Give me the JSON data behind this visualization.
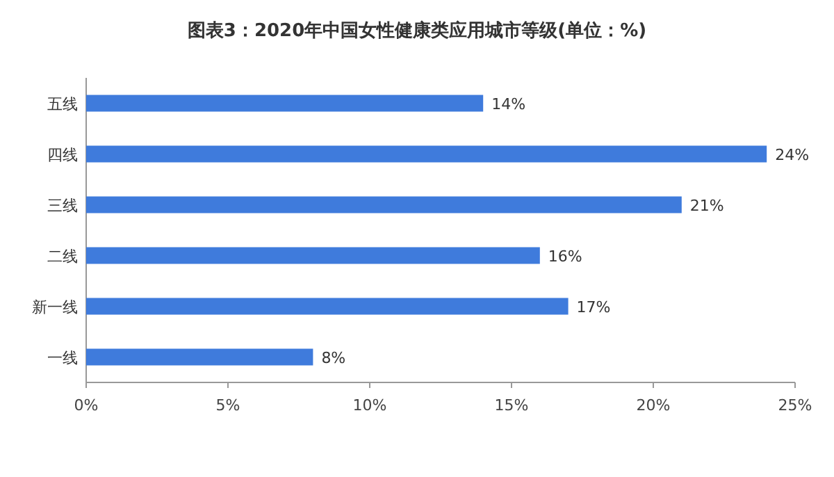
{
  "chart_data": {
    "type": "bar",
    "orientation": "horizontal",
    "title": "图表3：2020年中国女性健康类应用城市等级(单位：%)",
    "categories": [
      "五线",
      "四线",
      "三线",
      "二线",
      "新一线",
      "一线"
    ],
    "values": [
      14,
      24,
      21,
      16,
      17,
      8
    ],
    "value_labels": [
      "14%",
      "24%",
      "21%",
      "16%",
      "17%",
      "8%"
    ],
    "color": "#3f7bdc",
    "xlim": [
      0,
      25
    ],
    "xticks": [
      {
        "value": 0,
        "label": "0%"
      },
      {
        "value": 5,
        "label": "5%"
      },
      {
        "value": 10,
        "label": "10%"
      },
      {
        "value": 15,
        "label": "15%"
      },
      {
        "value": 20,
        "label": "20%"
      },
      {
        "value": 25,
        "label": "25%"
      }
    ],
    "grid": false
  }
}
